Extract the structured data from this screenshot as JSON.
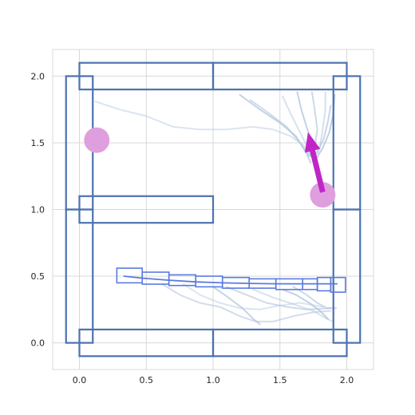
{
  "chart_data": {
    "type": "scatter",
    "title": "",
    "xlabel": "",
    "ylabel": "",
    "xlim": [
      -0.2,
      2.2
    ],
    "ylim": [
      -0.2,
      2.2
    ],
    "grid": true,
    "x_ticks": [
      "0.0",
      "0.5",
      "1.0",
      "1.5",
      "2.0"
    ],
    "y_ticks": [
      "0.0",
      "0.5",
      "1.0",
      "1.5",
      "2.0"
    ],
    "walls": [
      {
        "x0": 0.0,
        "y0": 1.9,
        "x1": 1.0,
        "y1": 2.1
      },
      {
        "x0": 1.0,
        "y0": 1.9,
        "x1": 2.0,
        "y1": 2.1
      },
      {
        "x0": 0.0,
        "y0": -0.1,
        "x1": 1.0,
        "y1": 0.1
      },
      {
        "x0": 1.0,
        "y0": -0.1,
        "x1": 2.0,
        "y1": 0.1
      },
      {
        "x0": -0.1,
        "y0": 0.0,
        "x1": 0.1,
        "y1": 1.0
      },
      {
        "x0": -0.1,
        "y0": 1.0,
        "x1": 0.1,
        "y1": 2.0
      },
      {
        "x0": 1.9,
        "y0": 0.0,
        "x1": 2.1,
        "y1": 1.0
      },
      {
        "x0": 1.9,
        "y0": 1.0,
        "x1": 2.1,
        "y1": 2.0
      },
      {
        "x0": 0.0,
        "y0": 0.9,
        "x1": 1.0,
        "y1": 1.1
      }
    ],
    "targets": [
      {
        "x": 0.13,
        "y": 1.52
      },
      {
        "x": 1.82,
        "y": 1.11
      }
    ],
    "arrow": {
      "x0": 1.82,
      "y0": 1.13,
      "x1": 1.71,
      "y1": 1.58,
      "color": "#c026c6"
    },
    "trajectories": [
      [
        [
          0.12,
          1.81
        ],
        [
          0.3,
          1.75
        ],
        [
          0.5,
          1.7
        ],
        [
          0.7,
          1.62
        ],
        [
          0.9,
          1.6
        ],
        [
          1.1,
          1.6
        ],
        [
          1.3,
          1.62
        ],
        [
          1.45,
          1.6
        ],
        [
          1.58,
          1.55
        ],
        [
          1.68,
          1.48
        ],
        [
          1.73,
          1.4
        ]
      ],
      [
        [
          1.2,
          1.86
        ],
        [
          1.35,
          1.75
        ],
        [
          1.5,
          1.65
        ],
        [
          1.62,
          1.55
        ],
        [
          1.7,
          1.42
        ],
        [
          1.73,
          1.35
        ]
      ],
      [
        [
          1.28,
          1.82
        ],
        [
          1.42,
          1.72
        ],
        [
          1.55,
          1.62
        ],
        [
          1.65,
          1.5
        ],
        [
          1.72,
          1.4
        ]
      ],
      [
        [
          1.52,
          1.85
        ],
        [
          1.58,
          1.72
        ],
        [
          1.64,
          1.6
        ],
        [
          1.7,
          1.48
        ],
        [
          1.73,
          1.4
        ]
      ],
      [
        [
          1.63,
          1.88
        ],
        [
          1.66,
          1.75
        ],
        [
          1.7,
          1.62
        ],
        [
          1.74,
          1.5
        ],
        [
          1.75,
          1.42
        ]
      ],
      [
        [
          1.74,
          1.88
        ],
        [
          1.76,
          1.75
        ],
        [
          1.78,
          1.6
        ],
        [
          1.76,
          1.46
        ]
      ],
      [
        [
          1.84,
          1.88
        ],
        [
          1.84,
          1.75
        ],
        [
          1.82,
          1.6
        ],
        [
          1.8,
          1.48
        ],
        [
          1.76,
          1.4
        ]
      ],
      [
        [
          1.91,
          1.86
        ],
        [
          1.9,
          1.72
        ],
        [
          1.87,
          1.58
        ],
        [
          1.82,
          1.46
        ],
        [
          1.77,
          1.38
        ]
      ],
      [
        [
          1.88,
          1.78
        ],
        [
          1.86,
          1.66
        ],
        [
          1.83,
          1.54
        ],
        [
          1.78,
          1.42
        ]
      ],
      [
        [
          0.62,
          0.44
        ],
        [
          0.75,
          0.36
        ],
        [
          0.9,
          0.3
        ],
        [
          1.05,
          0.27
        ],
        [
          1.2,
          0.2
        ],
        [
          1.32,
          0.16
        ],
        [
          1.45,
          0.16
        ],
        [
          1.6,
          0.2
        ],
        [
          1.75,
          0.23
        ],
        [
          1.88,
          0.24
        ]
      ],
      [
        [
          0.78,
          0.44
        ],
        [
          0.9,
          0.36
        ],
        [
          1.05,
          0.3
        ],
        [
          1.2,
          0.26
        ],
        [
          1.35,
          0.25
        ],
        [
          1.5,
          0.28
        ],
        [
          1.65,
          0.3
        ],
        [
          1.82,
          0.27
        ]
      ],
      [
        [
          1.0,
          0.42
        ],
        [
          1.1,
          0.35
        ],
        [
          1.22,
          0.26
        ],
        [
          1.3,
          0.18
        ],
        [
          1.35,
          0.14
        ]
      ],
      [
        [
          1.1,
          0.42
        ],
        [
          1.25,
          0.36
        ],
        [
          1.4,
          0.3
        ],
        [
          1.55,
          0.27
        ],
        [
          1.7,
          0.25
        ],
        [
          1.88,
          0.26
        ]
      ],
      [
        [
          1.3,
          0.4
        ],
        [
          1.45,
          0.34
        ],
        [
          1.6,
          0.29
        ],
        [
          1.75,
          0.24
        ],
        [
          1.85,
          0.18
        ],
        [
          1.9,
          0.16
        ]
      ],
      [
        [
          1.52,
          0.4
        ],
        [
          1.62,
          0.36
        ],
        [
          1.72,
          0.3
        ],
        [
          1.8,
          0.24
        ],
        [
          1.86,
          0.18
        ]
      ],
      [
        [
          1.6,
          0.42
        ],
        [
          1.7,
          0.36
        ],
        [
          1.78,
          0.3
        ],
        [
          1.85,
          0.26
        ],
        [
          1.92,
          0.26
        ]
      ]
    ],
    "robot_spine": [
      [
        0.33,
        0.5
      ],
      [
        0.47,
        0.485
      ],
      [
        0.67,
        0.47
      ],
      [
        0.87,
        0.457
      ],
      [
        1.07,
        0.45
      ],
      [
        1.27,
        0.446
      ],
      [
        1.47,
        0.443
      ],
      [
        1.67,
        0.443
      ],
      [
        1.82,
        0.443
      ],
      [
        1.93,
        0.443
      ]
    ],
    "robot_segments": [
      {
        "x0": 0.28,
        "y0": 0.45,
        "x1": 0.47,
        "y1": 0.56
      },
      {
        "x0": 0.47,
        "y0": 0.44,
        "x1": 0.67,
        "y1": 0.53
      },
      {
        "x0": 0.67,
        "y0": 0.43,
        "x1": 0.87,
        "y1": 0.51
      },
      {
        "x0": 0.87,
        "y0": 0.42,
        "x1": 1.07,
        "y1": 0.5
      },
      {
        "x0": 1.07,
        "y0": 0.41,
        "x1": 1.27,
        "y1": 0.49
      },
      {
        "x0": 1.27,
        "y0": 0.41,
        "x1": 1.47,
        "y1": 0.48
      },
      {
        "x0": 1.47,
        "y0": 0.4,
        "x1": 1.67,
        "y1": 0.48
      },
      {
        "x0": 1.67,
        "y0": 0.4,
        "x1": 1.78,
        "y1": 0.48
      },
      {
        "x0": 1.78,
        "y0": 0.39,
        "x1": 1.88,
        "y1": 0.49
      },
      {
        "x0": 1.88,
        "y0": 0.38,
        "x1": 1.99,
        "y1": 0.49
      }
    ],
    "colors": {
      "wall": "#4c72b0",
      "target": "#df9fdf",
      "trajectory": "#b0c4de",
      "robot": "#5a7be0",
      "arrow": "#c026c6"
    }
  }
}
